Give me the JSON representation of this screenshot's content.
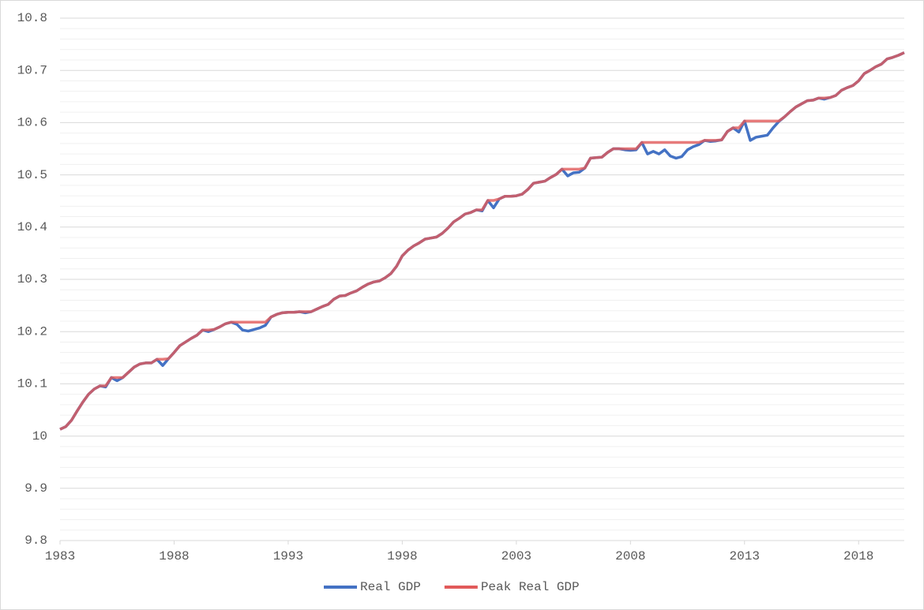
{
  "chart_data": {
    "type": "line",
    "x": [
      1983,
      1983.25,
      1983.5,
      1983.75,
      1984,
      1984.25,
      1984.5,
      1984.75,
      1985,
      1985.25,
      1985.5,
      1985.75,
      1986,
      1986.25,
      1986.5,
      1986.75,
      1987,
      1987.25,
      1987.5,
      1987.75,
      1988,
      1988.25,
      1988.5,
      1988.75,
      1989,
      1989.25,
      1989.5,
      1989.75,
      1990,
      1990.25,
      1990.5,
      1990.75,
      1991,
      1991.25,
      1991.5,
      1991.75,
      1992,
      1992.25,
      1992.5,
      1992.75,
      1993,
      1993.25,
      1993.5,
      1993.75,
      1994,
      1994.25,
      1994.5,
      1994.75,
      1995,
      1995.25,
      1995.5,
      1995.75,
      1996,
      1996.25,
      1996.5,
      1996.75,
      1997,
      1997.25,
      1997.5,
      1997.75,
      1998,
      1998.25,
      1998.5,
      1998.75,
      1999,
      1999.25,
      1999.5,
      1999.75,
      2000,
      2000.25,
      2000.5,
      2000.75,
      2001,
      2001.25,
      2001.5,
      2001.75,
      2002,
      2002.25,
      2002.5,
      2002.75,
      2003,
      2003.25,
      2003.5,
      2003.75,
      2004,
      2004.25,
      2004.5,
      2004.75,
      2005,
      2005.25,
      2005.5,
      2005.75,
      2006,
      2006.25,
      2006.5,
      2006.75,
      2007,
      2007.25,
      2007.5,
      2007.75,
      2008,
      2008.25,
      2008.5,
      2008.75,
      2009,
      2009.25,
      2009.5,
      2009.75,
      2010,
      2010.25,
      2010.5,
      2010.75,
      2011,
      2011.25,
      2011.5,
      2011.75,
      2012,
      2012.25,
      2012.5,
      2012.75,
      2013,
      2013.25,
      2013.5,
      2013.75,
      2014,
      2014.25,
      2014.5,
      2014.75,
      2015,
      2015.25,
      2015.5,
      2015.75,
      2016,
      2016.25,
      2016.5,
      2016.75,
      2017,
      2017.25,
      2017.5,
      2017.75,
      2018,
      2018.25,
      2018.5,
      2018.75,
      2019,
      2019.25,
      2019.5,
      2019.75,
      2020
    ],
    "series": [
      {
        "name": "Real GDP",
        "color": "#4472c4",
        "values": [
          10.013,
          10.018,
          10.03,
          10.048,
          10.065,
          10.08,
          10.09,
          10.096,
          10.094,
          10.112,
          10.106,
          10.112,
          10.122,
          10.132,
          10.138,
          10.14,
          10.14,
          10.147,
          10.135,
          10.148,
          10.16,
          10.173,
          10.18,
          10.187,
          10.193,
          10.203,
          10.2,
          10.204,
          10.209,
          10.215,
          10.218,
          10.214,
          10.203,
          10.201,
          10.204,
          10.207,
          10.212,
          10.228,
          10.233,
          10.236,
          10.237,
          10.237,
          10.238,
          10.236,
          10.238,
          10.243,
          10.248,
          10.252,
          10.262,
          10.268,
          10.269,
          10.274,
          10.278,
          10.285,
          10.291,
          10.295,
          10.297,
          10.303,
          10.311,
          10.325,
          10.345,
          10.356,
          10.364,
          10.37,
          10.377,
          10.379,
          10.381,
          10.388,
          10.398,
          10.41,
          10.417,
          10.425,
          10.428,
          10.433,
          10.431,
          10.451,
          10.437,
          10.454,
          10.459,
          10.459,
          10.46,
          10.463,
          10.472,
          10.484,
          10.486,
          10.488,
          10.495,
          10.501,
          10.511,
          10.498,
          10.504,
          10.505,
          10.513,
          10.532,
          10.533,
          10.534,
          10.543,
          10.55,
          10.55,
          10.548,
          10.547,
          10.548,
          10.562,
          10.54,
          10.545,
          10.54,
          10.548,
          10.536,
          10.532,
          10.535,
          10.548,
          10.554,
          10.558,
          10.566,
          10.564,
          10.565,
          10.567,
          10.583,
          10.59,
          10.582,
          10.603,
          10.566,
          10.572,
          10.574,
          10.576,
          10.59,
          10.602,
          10.611,
          10.621,
          10.63,
          10.636,
          10.642,
          10.643,
          10.647,
          10.645,
          10.648,
          10.652,
          10.662,
          10.667,
          10.671,
          10.68,
          10.694,
          10.7,
          10.707,
          10.712,
          10.722,
          10.725,
          10.729,
          10.734
        ]
      },
      {
        "name": "Peak Real GDP",
        "color": "#e15a5a",
        "values": [
          10.013,
          10.018,
          10.03,
          10.048,
          10.065,
          10.08,
          10.09,
          10.096,
          10.096,
          10.112,
          10.112,
          10.112,
          10.122,
          10.132,
          10.138,
          10.14,
          10.14,
          10.147,
          10.147,
          10.148,
          10.16,
          10.173,
          10.18,
          10.187,
          10.193,
          10.203,
          10.203,
          10.204,
          10.209,
          10.215,
          10.218,
          10.218,
          10.218,
          10.218,
          10.218,
          10.218,
          10.218,
          10.228,
          10.233,
          10.236,
          10.237,
          10.237,
          10.238,
          10.238,
          10.238,
          10.243,
          10.248,
          10.252,
          10.262,
          10.268,
          10.269,
          10.274,
          10.278,
          10.285,
          10.291,
          10.295,
          10.297,
          10.303,
          10.311,
          10.325,
          10.345,
          10.356,
          10.364,
          10.37,
          10.377,
          10.379,
          10.381,
          10.388,
          10.398,
          10.41,
          10.417,
          10.425,
          10.428,
          10.433,
          10.433,
          10.451,
          10.451,
          10.454,
          10.459,
          10.459,
          10.46,
          10.463,
          10.472,
          10.484,
          10.486,
          10.488,
          10.495,
          10.501,
          10.511,
          10.511,
          10.511,
          10.511,
          10.513,
          10.532,
          10.533,
          10.534,
          10.543,
          10.55,
          10.55,
          10.55,
          10.55,
          10.55,
          10.562,
          10.562,
          10.562,
          10.562,
          10.562,
          10.562,
          10.562,
          10.562,
          10.562,
          10.562,
          10.562,
          10.566,
          10.566,
          10.566,
          10.567,
          10.583,
          10.59,
          10.59,
          10.603,
          10.603,
          10.603,
          10.603,
          10.603,
          10.603,
          10.603,
          10.611,
          10.621,
          10.63,
          10.636,
          10.642,
          10.643,
          10.647,
          10.647,
          10.648,
          10.652,
          10.662,
          10.667,
          10.671,
          10.68,
          10.694,
          10.7,
          10.707,
          10.712,
          10.722,
          10.725,
          10.729,
          10.734
        ]
      }
    ],
    "xlim": [
      1983,
      2020
    ],
    "xticks": [
      1983,
      1988,
      1993,
      1998,
      2003,
      2008,
      2013,
      2018
    ],
    "ylim": [
      9.8,
      10.8
    ],
    "yticks": [
      9.8,
      9.9,
      10,
      10.1,
      10.2,
      10.3,
      10.4,
      10.5,
      10.6,
      10.7,
      10.8
    ],
    "grid": true,
    "minor_grid_divisions": 5,
    "legend": "bottom"
  }
}
